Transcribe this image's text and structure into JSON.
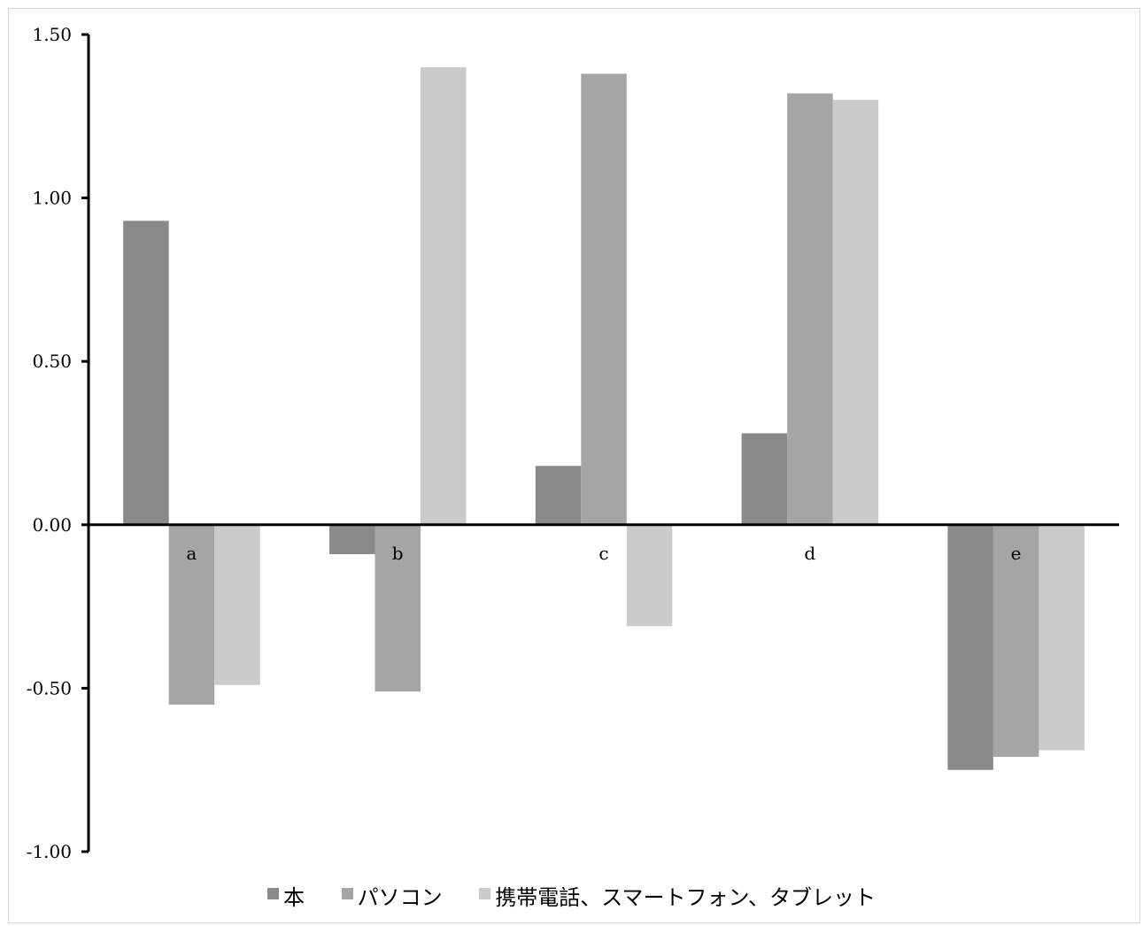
{
  "chart_data": {
    "type": "bar",
    "categories": [
      "a",
      "b",
      "c",
      "d",
      "e"
    ],
    "series": [
      {
        "name": "本",
        "color": "#8a8a8a",
        "values": [
          0.93,
          -0.09,
          0.18,
          0.28,
          -0.75
        ]
      },
      {
        "name": "パソコン",
        "color": "#a5a5a5",
        "values": [
          -0.55,
          -0.51,
          1.38,
          1.32,
          -0.71
        ]
      },
      {
        "name": "携帯電話、スマートフォン、タブレット",
        "color": "#cbcbcb",
        "values": [
          -0.49,
          1.4,
          -0.31,
          1.3,
          -0.69
        ]
      }
    ],
    "ylim": [
      -1.0,
      1.5
    ],
    "yticks": [
      "-1.00",
      "-0.50",
      "0.00",
      "0.50",
      "1.00",
      "1.50"
    ],
    "title": "",
    "xlabel": "",
    "ylabel": "",
    "grid": false,
    "legend_position": "bottom"
  }
}
